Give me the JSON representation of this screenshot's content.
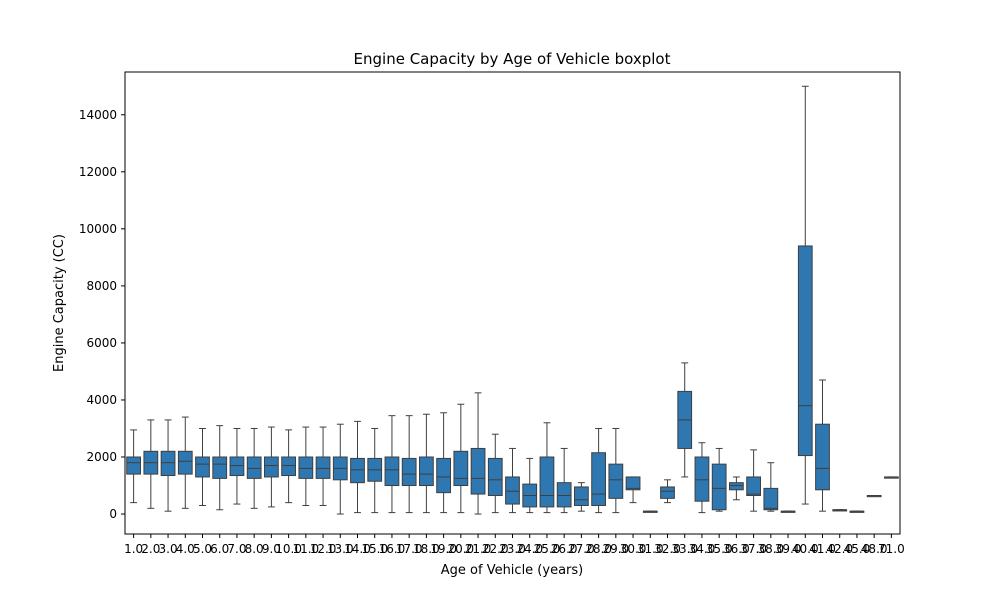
{
  "chart_data": {
    "type": "box",
    "title": "Engine Capacity by Age of Vehicle boxplot",
    "xlabel": "Age of Vehicle (years)",
    "ylabel": "Engine Capacity (CC)",
    "ylim": [
      -700,
      15500
    ],
    "yticks": [
      0,
      2000,
      4000,
      6000,
      8000,
      10000,
      12000,
      14000
    ],
    "box_color": "#2f77b1",
    "edge_color": "#3f3f3f",
    "grid": false,
    "categories": [
      "1.0",
      "2.0",
      "3.0",
      "4.0",
      "5.0",
      "6.0",
      "7.0",
      "8.0",
      "9.0",
      "10.0",
      "11.0",
      "12.0",
      "13.0",
      "14.0",
      "15.0",
      "16.0",
      "17.0",
      "18.0",
      "19.0",
      "20.0",
      "21.0",
      "22.0",
      "23.0",
      "24.0",
      "25.0",
      "26.0",
      "27.0",
      "28.0",
      "29.0",
      "30.0",
      "31.0",
      "32.0",
      "33.0",
      "34.0",
      "35.0",
      "36.0",
      "37.0",
      "38.0",
      "39.0",
      "40.0",
      "41.0",
      "42.0",
      "45.0",
      "48.0",
      "71.0"
    ],
    "boxes": [
      {
        "whislo": 400,
        "q1": 1400,
        "med": 1800,
        "q3": 2000,
        "whishi": 2950
      },
      {
        "whislo": 200,
        "q1": 1400,
        "med": 1800,
        "q3": 2200,
        "whishi": 3300
      },
      {
        "whislo": 100,
        "q1": 1350,
        "med": 1800,
        "q3": 2200,
        "whishi": 3300
      },
      {
        "whislo": 200,
        "q1": 1400,
        "med": 1850,
        "q3": 2200,
        "whishi": 3400
      },
      {
        "whislo": 300,
        "q1": 1300,
        "med": 1750,
        "q3": 2000,
        "whishi": 3000
      },
      {
        "whislo": 150,
        "q1": 1250,
        "med": 1750,
        "q3": 2000,
        "whishi": 3100
      },
      {
        "whislo": 350,
        "q1": 1350,
        "med": 1700,
        "q3": 2000,
        "whishi": 3000
      },
      {
        "whislo": 200,
        "q1": 1250,
        "med": 1600,
        "q3": 2000,
        "whishi": 3000
      },
      {
        "whislo": 250,
        "q1": 1300,
        "med": 1700,
        "q3": 2000,
        "whishi": 3050
      },
      {
        "whislo": 400,
        "q1": 1350,
        "med": 1700,
        "q3": 2000,
        "whishi": 2950
      },
      {
        "whislo": 300,
        "q1": 1250,
        "med": 1600,
        "q3": 2000,
        "whishi": 3050
      },
      {
        "whislo": 300,
        "q1": 1250,
        "med": 1600,
        "q3": 2000,
        "whishi": 3050
      },
      {
        "whislo": 0,
        "q1": 1200,
        "med": 1600,
        "q3": 2000,
        "whishi": 3150
      },
      {
        "whislo": 50,
        "q1": 1100,
        "med": 1550,
        "q3": 1950,
        "whishi": 3250
      },
      {
        "whislo": 50,
        "q1": 1150,
        "med": 1550,
        "q3": 1950,
        "whishi": 3000
      },
      {
        "whislo": 50,
        "q1": 1000,
        "med": 1550,
        "q3": 2000,
        "whishi": 3450
      },
      {
        "whislo": 50,
        "q1": 1000,
        "med": 1400,
        "q3": 1950,
        "whishi": 3450
      },
      {
        "whislo": 50,
        "q1": 1000,
        "med": 1400,
        "q3": 2000,
        "whishi": 3500
      },
      {
        "whislo": 50,
        "q1": 750,
        "med": 1300,
        "q3": 1950,
        "whishi": 3550
      },
      {
        "whislo": 50,
        "q1": 1000,
        "med": 1250,
        "q3": 2200,
        "whishi": 3850
      },
      {
        "whislo": 0,
        "q1": 700,
        "med": 1250,
        "q3": 2300,
        "whishi": 4250
      },
      {
        "whislo": 50,
        "q1": 650,
        "med": 1200,
        "q3": 1950,
        "whishi": 2800
      },
      {
        "whislo": 50,
        "q1": 350,
        "med": 800,
        "q3": 1300,
        "whishi": 2300
      },
      {
        "whislo": 50,
        "q1": 250,
        "med": 650,
        "q3": 1050,
        "whishi": 1950
      },
      {
        "whislo": 50,
        "q1": 250,
        "med": 650,
        "q3": 2000,
        "whishi": 3200
      },
      {
        "whislo": 50,
        "q1": 250,
        "med": 650,
        "q3": 1100,
        "whishi": 2300
      },
      {
        "whislo": 100,
        "q1": 300,
        "med": 500,
        "q3": 950,
        "whishi": 1100
      },
      {
        "whislo": 50,
        "q1": 300,
        "med": 700,
        "q3": 2150,
        "whishi": 3000
      },
      {
        "whislo": 50,
        "q1": 550,
        "med": 1200,
        "q3": 1750,
        "whishi": 3000
      },
      {
        "whislo": 400,
        "q1": 850,
        "med": 900,
        "q3": 1300,
        "whishi": 1300
      },
      {
        "whislo": 100,
        "q1": 100,
        "med": 100,
        "q3": 100,
        "whishi": 100
      },
      {
        "whislo": 400,
        "q1": 550,
        "med": 800,
        "q3": 950,
        "whishi": 1200
      },
      {
        "whislo": 1300,
        "q1": 2300,
        "med": 3300,
        "q3": 4300,
        "whishi": 5300
      },
      {
        "whislo": 50,
        "q1": 450,
        "med": 1200,
        "q3": 2000,
        "whishi": 2500
      },
      {
        "whislo": 100,
        "q1": 150,
        "med": 900,
        "q3": 1750,
        "whishi": 2300
      },
      {
        "whislo": 500,
        "q1": 850,
        "med": 1000,
        "q3": 1100,
        "whishi": 1300
      },
      {
        "whislo": 100,
        "q1": 650,
        "med": 700,
        "q3": 1300,
        "whishi": 2250
      },
      {
        "whislo": 100,
        "q1": 150,
        "med": 200,
        "q3": 900,
        "whishi": 1800
      },
      {
        "whislo": 100,
        "q1": 100,
        "med": 100,
        "q3": 100,
        "whishi": 100
      },
      {
        "whislo": 350,
        "q1": 2050,
        "med": 3800,
        "q3": 9400,
        "whishi": 15000
      },
      {
        "whislo": 100,
        "q1": 850,
        "med": 1600,
        "q3": 3150,
        "whishi": 4700
      },
      {
        "whislo": 150,
        "q1": 150,
        "med": 150,
        "q3": 150,
        "whishi": 150
      },
      {
        "whislo": 100,
        "q1": 100,
        "med": 100,
        "q3": 100,
        "whishi": 100
      },
      {
        "whislo": 650,
        "q1": 650,
        "med": 650,
        "q3": 650,
        "whishi": 650
      },
      {
        "whislo": 1300,
        "q1": 1300,
        "med": 1300,
        "q3": 1300,
        "whishi": 1300
      }
    ]
  }
}
